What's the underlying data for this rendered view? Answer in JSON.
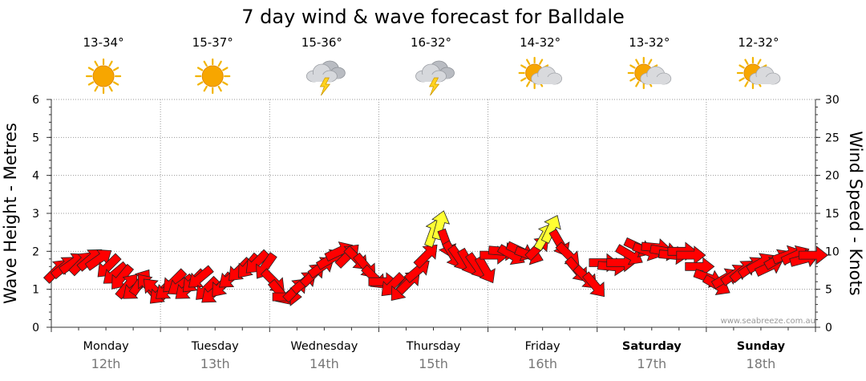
{
  "chart_data": {
    "type": "line",
    "title": "7 day wind & wave forecast for Balldale",
    "ylabel_left": "Wave Height - Metres",
    "ylabel_right": "Wind Speed - Knots",
    "ylim_left": [
      0,
      6
    ],
    "ylim_right": [
      0,
      30
    ],
    "yticks_left": [
      "0",
      "1",
      "2",
      "3",
      "4",
      "5",
      "6"
    ],
    "yticks_right": [
      "0",
      "5",
      "10",
      "15",
      "20",
      "25",
      "30"
    ],
    "credit": "www.seabreeze.com.au",
    "days": [
      {
        "day": "Monday",
        "date": "12th",
        "bold": false,
        "temp": "13-34°",
        "icon": "sunny-icon"
      },
      {
        "day": "Tuesday",
        "date": "13th",
        "bold": false,
        "temp": "15-37°",
        "icon": "sunny-icon"
      },
      {
        "day": "Wednesday",
        "date": "14th",
        "bold": false,
        "temp": "15-36°",
        "icon": "thunderstorm-icon"
      },
      {
        "day": "Thursday",
        "date": "15th",
        "bold": false,
        "temp": "16-32°",
        "icon": "thunderstorm-icon"
      },
      {
        "day": "Friday",
        "date": "16th",
        "bold": false,
        "temp": "14-32°",
        "icon": "partly-cloudy-icon"
      },
      {
        "day": "Saturday",
        "date": "17th",
        "bold": true,
        "temp": "13-32°",
        "icon": "partly-cloudy-icon"
      },
      {
        "day": "Sunday",
        "date": "18th",
        "bold": true,
        "temp": "12-32°",
        "icon": "partly-cloudy-icon"
      }
    ],
    "wind": {
      "units": "knots",
      "note": "Each arrow: day index + fraction of day (t), wind speed in knots, direction the wind blows toward in degrees (0 = north/up, 90 = east/right)",
      "series": [
        {
          "t": 0.05,
          "kts": 7.5,
          "dir": 45
        },
        {
          "t": 0.12,
          "kts": 8.0,
          "dir": 50
        },
        {
          "t": 0.2,
          "kts": 8.5,
          "dir": 55
        },
        {
          "t": 0.28,
          "kts": 8.5,
          "dir": 45
        },
        {
          "t": 0.36,
          "kts": 9.0,
          "dir": 50
        },
        {
          "t": 0.44,
          "kts": 9.0,
          "dir": 55
        },
        {
          "t": 0.52,
          "kts": 8.0,
          "dir": 225
        },
        {
          "t": 0.58,
          "kts": 7.0,
          "dir": 230
        },
        {
          "t": 0.64,
          "kts": 6.5,
          "dir": 220
        },
        {
          "t": 0.7,
          "kts": 5.5,
          "dir": 40
        },
        {
          "t": 0.76,
          "kts": 5.0,
          "dir": 230
        },
        {
          "t": 0.82,
          "kts": 6.0,
          "dir": 35
        },
        {
          "t": 0.88,
          "kts": 5.5,
          "dir": 320
        },
        {
          "t": 0.94,
          "kts": 5.0,
          "dir": 315
        },
        {
          "t": 1.0,
          "kts": 4.5,
          "dir": 225
        },
        {
          "t": 1.06,
          "kts": 5.0,
          "dir": 230
        },
        {
          "t": 1.12,
          "kts": 6.0,
          "dir": 225
        },
        {
          "t": 1.18,
          "kts": 5.5,
          "dir": 235
        },
        {
          "t": 1.24,
          "kts": 5.0,
          "dir": 230
        },
        {
          "t": 1.3,
          "kts": 6.0,
          "dir": 225
        },
        {
          "t": 1.36,
          "kts": 6.5,
          "dir": 230
        },
        {
          "t": 1.42,
          "kts": 5.0,
          "dir": 225
        },
        {
          "t": 1.48,
          "kts": 4.5,
          "dir": 230
        },
        {
          "t": 1.56,
          "kts": 5.5,
          "dir": 220
        },
        {
          "t": 1.64,
          "kts": 6.5,
          "dir": 230
        },
        {
          "t": 1.72,
          "kts": 7.5,
          "dir": 225
        },
        {
          "t": 1.8,
          "kts": 8.0,
          "dir": 220
        },
        {
          "t": 1.88,
          "kts": 8.5,
          "dir": 225
        },
        {
          "t": 1.96,
          "kts": 8.0,
          "dir": 215
        },
        {
          "t": 2.04,
          "kts": 6.0,
          "dir": 135
        },
        {
          "t": 2.1,
          "kts": 4.5,
          "dir": 140
        },
        {
          "t": 2.16,
          "kts": 4.0,
          "dir": 90
        },
        {
          "t": 2.24,
          "kts": 5.0,
          "dir": 45
        },
        {
          "t": 2.32,
          "kts": 6.0,
          "dir": 50
        },
        {
          "t": 2.4,
          "kts": 7.0,
          "dir": 45
        },
        {
          "t": 2.48,
          "kts": 8.0,
          "dir": 55
        },
        {
          "t": 2.56,
          "kts": 9.0,
          "dir": 60
        },
        {
          "t": 2.64,
          "kts": 10.0,
          "dir": 65
        },
        {
          "t": 2.72,
          "kts": 9.5,
          "dir": 45
        },
        {
          "t": 2.8,
          "kts": 9.0,
          "dir": 135
        },
        {
          "t": 2.88,
          "kts": 8.0,
          "dir": 140
        },
        {
          "t": 2.96,
          "kts": 6.5,
          "dir": 135
        },
        {
          "t": 3.04,
          "kts": 6.0,
          "dir": 90
        },
        {
          "t": 3.12,
          "kts": 5.5,
          "dir": 225
        },
        {
          "t": 3.2,
          "kts": 5.0,
          "dir": 220
        },
        {
          "t": 3.28,
          "kts": 6.0,
          "dir": 45
        },
        {
          "t": 3.36,
          "kts": 7.5,
          "dir": 50
        },
        {
          "t": 3.44,
          "kts": 9.5,
          "dir": 45
        },
        {
          "t": 3.5,
          "kts": 12.5,
          "dir": 20,
          "gust": true
        },
        {
          "t": 3.56,
          "kts": 13.5,
          "dir": 15,
          "gust": true
        },
        {
          "t": 3.62,
          "kts": 11.0,
          "dir": 160
        },
        {
          "t": 3.68,
          "kts": 9.5,
          "dir": 150
        },
        {
          "t": 3.74,
          "kts": 9.0,
          "dir": 145
        },
        {
          "t": 3.82,
          "kts": 8.5,
          "dir": 150
        },
        {
          "t": 3.9,
          "kts": 8.0,
          "dir": 145
        },
        {
          "t": 3.98,
          "kts": 7.5,
          "dir": 150
        },
        {
          "t": 4.06,
          "kts": 9.5,
          "dir": 90
        },
        {
          "t": 4.14,
          "kts": 10.0,
          "dir": 95
        },
        {
          "t": 4.22,
          "kts": 9.5,
          "dir": 120
        },
        {
          "t": 4.3,
          "kts": 10.0,
          "dir": 115
        },
        {
          "t": 4.38,
          "kts": 9.5,
          "dir": 110
        },
        {
          "t": 4.46,
          "kts": 10.5,
          "dir": 45
        },
        {
          "t": 4.52,
          "kts": 12.0,
          "dir": 30,
          "gust": true
        },
        {
          "t": 4.58,
          "kts": 13.0,
          "dir": 25,
          "gust": true
        },
        {
          "t": 4.66,
          "kts": 11.0,
          "dir": 150
        },
        {
          "t": 4.74,
          "kts": 9.5,
          "dir": 135
        },
        {
          "t": 4.82,
          "kts": 7.5,
          "dir": 140
        },
        {
          "t": 4.9,
          "kts": 6.5,
          "dir": 135
        },
        {
          "t": 4.98,
          "kts": 5.5,
          "dir": 140
        },
        {
          "t": 5.06,
          "kts": 8.5,
          "dir": 90
        },
        {
          "t": 5.14,
          "kts": 8.0,
          "dir": 95
        },
        {
          "t": 5.22,
          "kts": 8.5,
          "dir": 90
        },
        {
          "t": 5.3,
          "kts": 9.5,
          "dir": 120
        },
        {
          "t": 5.38,
          "kts": 10.5,
          "dir": 115
        },
        {
          "t": 5.46,
          "kts": 10.0,
          "dir": 110
        },
        {
          "t": 5.54,
          "kts": 10.5,
          "dir": 95
        },
        {
          "t": 5.62,
          "kts": 10.0,
          "dir": 100
        },
        {
          "t": 5.7,
          "kts": 9.5,
          "dir": 95
        },
        {
          "t": 5.78,
          "kts": 10.0,
          "dir": 90
        },
        {
          "t": 5.86,
          "kts": 9.5,
          "dir": 90
        },
        {
          "t": 5.94,
          "kts": 8.0,
          "dir": 90
        },
        {
          "t": 6.02,
          "kts": 6.5,
          "dir": 110
        },
        {
          "t": 6.1,
          "kts": 5.5,
          "dir": 120
        },
        {
          "t": 6.18,
          "kts": 6.5,
          "dir": 60
        },
        {
          "t": 6.26,
          "kts": 7.0,
          "dir": 55
        },
        {
          "t": 6.34,
          "kts": 7.5,
          "dir": 50
        },
        {
          "t": 6.42,
          "kts": 8.0,
          "dir": 55
        },
        {
          "t": 6.5,
          "kts": 8.5,
          "dir": 60
        },
        {
          "t": 6.58,
          "kts": 8.0,
          "dir": 65
        },
        {
          "t": 6.66,
          "kts": 9.0,
          "dir": 60
        },
        {
          "t": 6.74,
          "kts": 9.5,
          "dir": 70
        },
        {
          "t": 6.82,
          "kts": 9.5,
          "dir": 65
        },
        {
          "t": 6.9,
          "kts": 9.0,
          "dir": 75
        },
        {
          "t": 6.98,
          "kts": 9.5,
          "dir": 90
        }
      ]
    }
  }
}
